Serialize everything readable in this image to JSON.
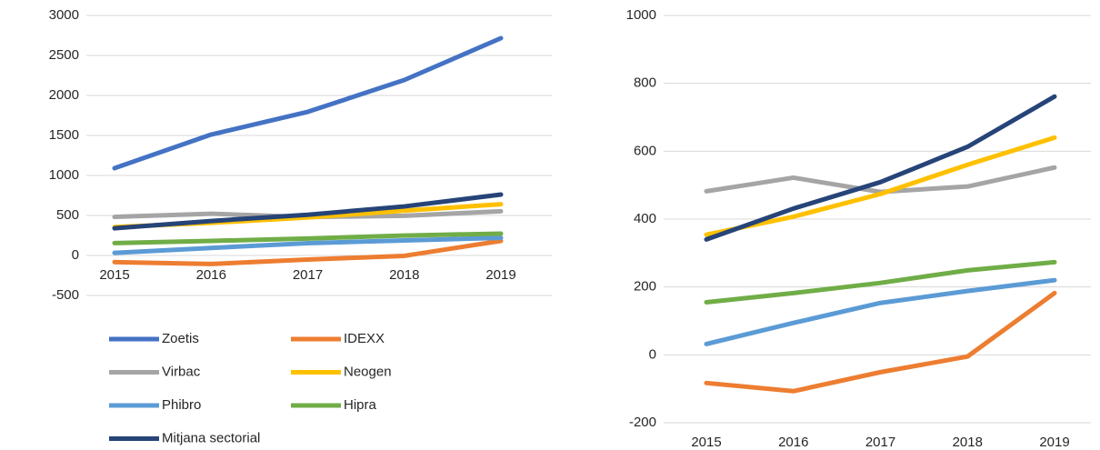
{
  "chart_data": [
    {
      "type": "line",
      "categories": [
        "2015",
        "2016",
        "2017",
        "2018",
        "2019"
      ],
      "ylim": [
        -500,
        3000
      ],
      "yticks": [
        -500,
        0,
        500,
        1000,
        1500,
        2000,
        2500,
        3000
      ],
      "grid": true,
      "legend": "bottom",
      "series": [
        {
          "name": "Zoetis",
          "color": "#4472c4",
          "values": [
            1091,
            1511,
            1795,
            2193,
            2716
          ]
        },
        {
          "name": "IDEXX",
          "color": "#ed7d31",
          "values": [
            -83,
            -107,
            -51,
            -5,
            182
          ]
        },
        {
          "name": "Virbac",
          "color": "#a5a5a5",
          "values": [
            482,
            522,
            480,
            496,
            552
          ]
        },
        {
          "name": "Neogen",
          "color": "#ffc000",
          "values": [
            354,
            407,
            474,
            560,
            640
          ]
        },
        {
          "name": "Phibro",
          "color": "#5b9bd5",
          "values": [
            32,
            94,
            153,
            188,
            220
          ]
        },
        {
          "name": "Hipra",
          "color": "#70ad47",
          "values": [
            155,
            182,
            212,
            249,
            273
          ]
        },
        {
          "name": "Mitjana sectorial",
          "color": "#264478",
          "values": [
            340,
            431,
            509,
            613,
            761
          ]
        }
      ]
    },
    {
      "type": "line",
      "categories": [
        "2015",
        "2016",
        "2017",
        "2018",
        "2019"
      ],
      "ylim": [
        -200,
        1000
      ],
      "yticks": [
        -200,
        0,
        200,
        400,
        600,
        800,
        1000
      ],
      "grid": true,
      "series": [
        {
          "color": "#ed7d31",
          "values": [
            -83,
            -107,
            -51,
            -5,
            182
          ]
        },
        {
          "color": "#a5a5a5",
          "values": [
            482,
            522,
            480,
            496,
            552
          ]
        },
        {
          "color": "#ffc000",
          "values": [
            354,
            407,
            474,
            560,
            640
          ]
        },
        {
          "color": "#5b9bd5",
          "values": [
            32,
            94,
            153,
            188,
            220
          ]
        },
        {
          "color": "#70ad47",
          "values": [
            155,
            182,
            212,
            249,
            273
          ]
        },
        {
          "color": "#264478",
          "values": [
            340,
            431,
            509,
            613,
            761
          ]
        }
      ]
    }
  ]
}
